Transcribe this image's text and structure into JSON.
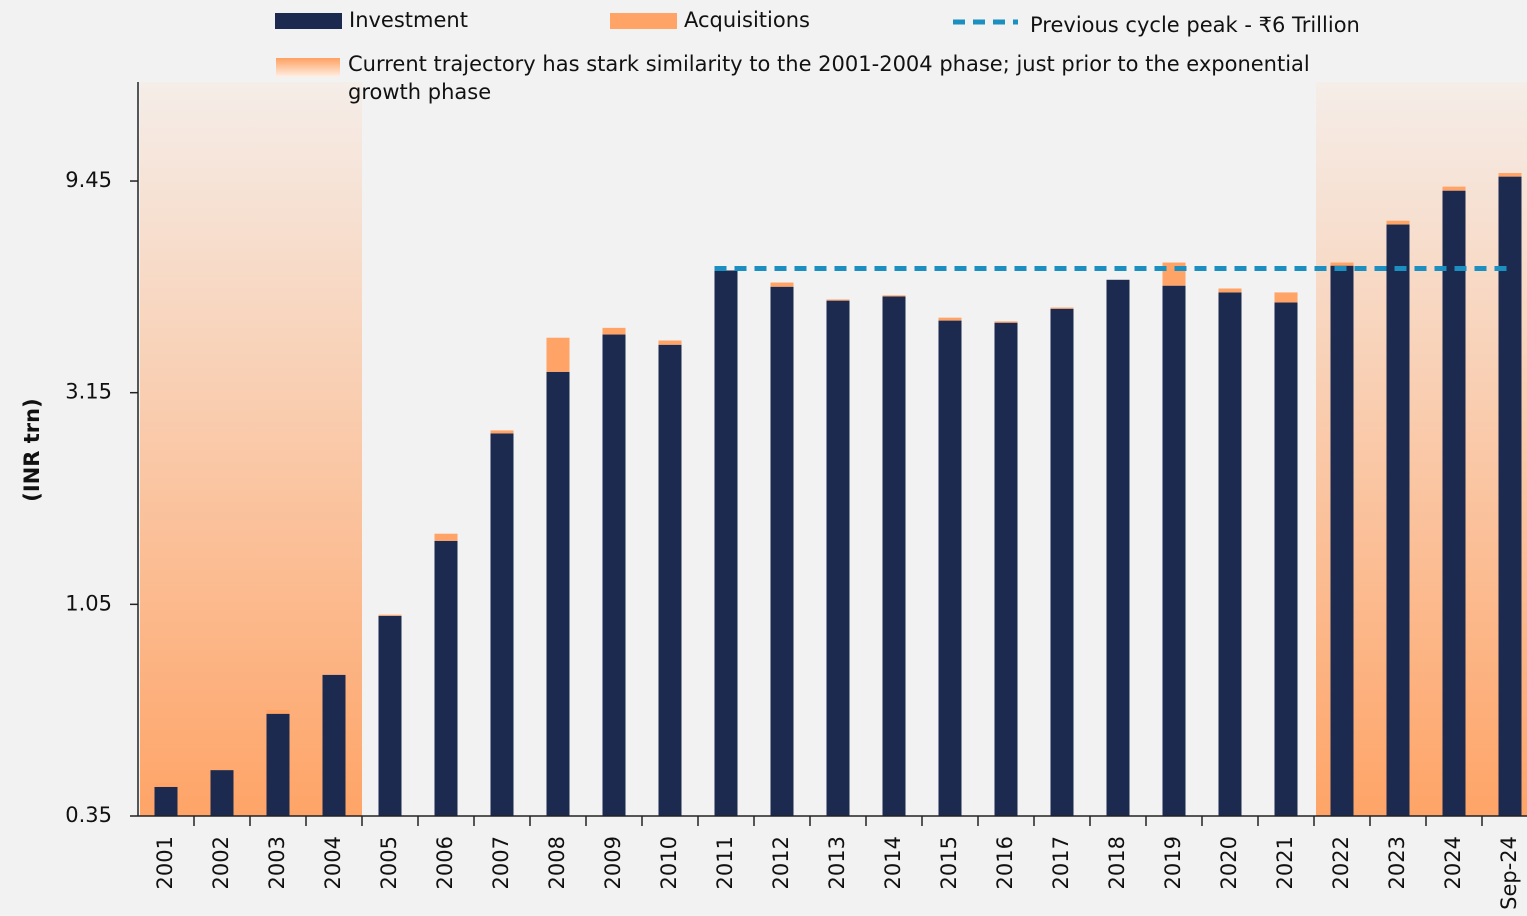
{
  "chart_data": {
    "type": "bar",
    "stacked": true,
    "y_label": "(INR trn)",
    "log_scale": true,
    "ylim": [
      0.35,
      15.8
    ],
    "yticks": [
      0.35,
      1.05,
      3.15,
      9.45
    ],
    "categories": [
      "2001",
      "2002",
      "2003",
      "2004",
      "2005",
      "2006",
      "2007",
      "2008",
      "2009",
      "2010",
      "2011",
      "2012",
      "2013",
      "2014",
      "2015",
      "2016",
      "2017",
      "2018",
      "2019",
      "2020",
      "2021",
      "2022",
      "2023",
      "2024",
      "Sep-24"
    ],
    "series": [
      {
        "name": "Investment",
        "color": "#1b2a4e",
        "values": [
          0.407,
          0.444,
          0.595,
          0.728,
          0.989,
          1.46,
          2.55,
          3.51,
          4.26,
          4.04,
          5.94,
          5.46,
          5.08,
          5.19,
          4.58,
          4.53,
          4.87,
          5.66,
          5.49,
          5.3,
          5.03,
          6.09,
          7.54,
          8.99,
          9.67
        ]
      },
      {
        "name": "Acquisitions",
        "color": "#ffa366",
        "values": [
          0.008,
          0,
          0.012,
          0,
          0.006,
          0.055,
          0.04,
          0.68,
          0.15,
          0.09,
          0,
          0.12,
          0.03,
          0.03,
          0.07,
          0.03,
          0.03,
          0,
          0.7,
          0.11,
          0.27,
          0.1,
          0.15,
          0.19,
          0.18
        ]
      }
    ],
    "peak_line": {
      "label": "Previous cycle peak - ₹6 Trillion",
      "value": 6,
      "color": "#1a8fc0"
    },
    "highlight": {
      "lines": [
        "Current trajectory has stark similarity to the 2001-2004 phase; just prior to the exponential",
        "growth phase"
      ],
      "ranges": [
        [
          "2001",
          "2004"
        ],
        [
          "2022",
          "Sep-24"
        ]
      ]
    }
  }
}
